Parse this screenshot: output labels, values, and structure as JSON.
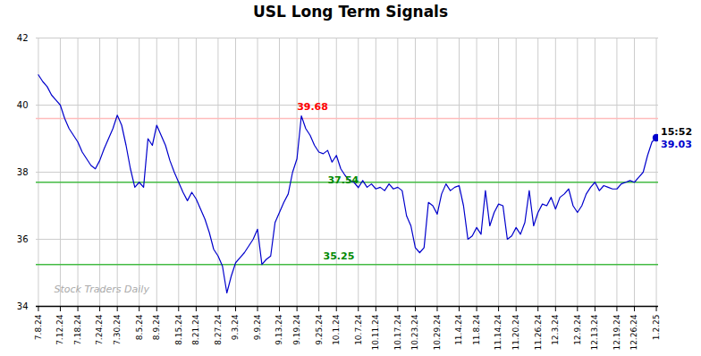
{
  "chart_data": {
    "type": "line",
    "title": "USL Long Term Signals",
    "categories": [
      "7.8.24",
      null,
      null,
      null,
      null,
      "7.12.24",
      null,
      null,
      null,
      "7.18.24",
      null,
      null,
      null,
      null,
      "7.24.24",
      null,
      null,
      null,
      "7.30.24",
      null,
      null,
      null,
      null,
      "8.5.24",
      null,
      null,
      null,
      "8.9.24",
      null,
      null,
      null,
      null,
      "8.15.24",
      null,
      null,
      null,
      "8.21.24",
      null,
      null,
      null,
      null,
      "8.27.24",
      null,
      null,
      null,
      "9.3.24",
      null,
      null,
      null,
      null,
      "9.9.24",
      null,
      null,
      null,
      null,
      "9.13.24",
      null,
      null,
      null,
      "9.19.24",
      null,
      null,
      null,
      null,
      "9.25.24",
      null,
      null,
      null,
      "10.1.24",
      null,
      null,
      null,
      null,
      "10.7.24",
      null,
      null,
      null,
      "10.11.24",
      null,
      null,
      null,
      null,
      "10.17.24",
      null,
      null,
      null,
      "10.23.24",
      null,
      null,
      null,
      null,
      "10.29.24",
      null,
      null,
      null,
      null,
      "11.4.24",
      null,
      null,
      null,
      "11.8.24",
      null,
      null,
      null,
      null,
      "11.14.24",
      null,
      null,
      null,
      "11.20.24",
      null,
      null,
      null,
      null,
      "11.26.24",
      null,
      null,
      null,
      "12.3.24",
      null,
      null,
      null,
      null,
      "12.9.24",
      null,
      null,
      null,
      "12.13.24",
      null,
      null,
      null,
      null,
      "12.19.24",
      null,
      null,
      null,
      "12.26.24",
      null,
      null,
      null,
      null,
      "1.2.25"
    ],
    "values": [
      40.9,
      40.7,
      40.55,
      40.3,
      40.15,
      40.0,
      39.6,
      39.3,
      39.1,
      38.9,
      38.6,
      38.4,
      38.2,
      38.1,
      38.35,
      38.7,
      39.0,
      39.3,
      39.7,
      39.4,
      38.8,
      38.1,
      37.55,
      37.7,
      37.55,
      39.0,
      38.8,
      39.4,
      39.1,
      38.8,
      38.35,
      38.0,
      37.7,
      37.4,
      37.15,
      37.4,
      37.2,
      36.9,
      36.6,
      36.2,
      35.7,
      35.5,
      35.2,
      34.4,
      34.9,
      35.3,
      35.45,
      35.6,
      35.8,
      36.0,
      36.3,
      35.25,
      35.4,
      35.5,
      36.5,
      36.8,
      37.1,
      37.35,
      38.0,
      38.4,
      39.68,
      39.3,
      39.1,
      38.8,
      38.6,
      38.55,
      38.65,
      38.3,
      38.5,
      38.1,
      37.9,
      37.75,
      37.7,
      37.54,
      37.75,
      37.55,
      37.65,
      37.5,
      37.55,
      37.45,
      37.65,
      37.5,
      37.55,
      37.45,
      36.7,
      36.4,
      35.75,
      35.6,
      35.75,
      37.1,
      37.0,
      36.75,
      37.35,
      37.65,
      37.45,
      37.55,
      37.6,
      37.0,
      36.0,
      36.1,
      36.35,
      36.15,
      37.45,
      36.4,
      36.8,
      37.05,
      37.0,
      36.0,
      36.1,
      36.35,
      36.15,
      36.5,
      37.45,
      36.4,
      36.8,
      37.05,
      37.0,
      37.25,
      36.9,
      37.25,
      37.35,
      37.5,
      37.0,
      36.8,
      37.0,
      37.35,
      37.55,
      37.7,
      37.45,
      37.6,
      37.55,
      37.5,
      37.5,
      37.65,
      37.7,
      37.75,
      37.7,
      37.85,
      38.0,
      38.5,
      38.9,
      39.03
    ],
    "color": "#0000cc",
    "ylim": [
      34,
      42
    ],
    "yticks": [
      34,
      36,
      38,
      40,
      42
    ],
    "grid": true,
    "hlines": [
      {
        "value": 39.6,
        "color": "#ffbbbb"
      },
      {
        "value": 37.7,
        "color": "#44bb44"
      },
      {
        "value": 35.25,
        "color": "#44bb44"
      }
    ],
    "points": [
      {
        "x": 141,
        "y": 39.03,
        "color": "#0000cc"
      }
    ],
    "annotations": [
      {
        "text": "39.68",
        "x": 59,
        "y": 39.85,
        "color": "red"
      },
      {
        "text": "37.54",
        "x": 66,
        "y": 37.68,
        "color": "#008800"
      },
      {
        "text": "35.25",
        "x": 65,
        "y": 35.4,
        "color": "#008800"
      },
      {
        "text": "15:52",
        "x": 141,
        "y": 39.03,
        "position": "above",
        "color": "black"
      },
      {
        "text": "39.03",
        "x": 141,
        "y": 39.03,
        "position": "below",
        "color": "#0000cc"
      }
    ],
    "watermark": {
      "text": "Stock Traders Daily",
      "color": "#aaaaaa"
    }
  }
}
